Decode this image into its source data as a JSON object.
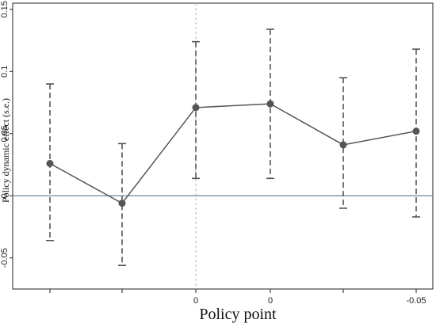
{
  "chart_data": {
    "type": "line",
    "title": "",
    "xlabel": "Policy point",
    "ylabel": "Policy dynamic effect (s.e.)",
    "ylim": [
      -0.075,
      0.155
    ],
    "y_ticks": [
      {
        "value": 0.15,
        "label": "0.15"
      },
      {
        "value": 0.1,
        "label": "0.1"
      },
      {
        "value": 0.05,
        "label": "0.05"
      },
      {
        "value": 0,
        "label": "0"
      },
      {
        "value": -0.05,
        "label": "-0.05"
      }
    ],
    "categories": [
      "",
      "",
      "0",
      "0",
      "",
      "-0.05"
    ],
    "series": [
      {
        "values": [
          0.026,
          -0.006,
          0.071,
          0.074,
          0.041,
          0.052
        ],
        "lower": [
          -0.036,
          -0.056,
          0.014,
          0.014,
          -0.01,
          -0.017
        ],
        "upper": [
          0.09,
          0.042,
          0.124,
          0.134,
          0.095,
          0.118
        ]
      }
    ],
    "reference_lines": {
      "horizontal_y": 0,
      "vertical_at_category_index": 2
    },
    "grid": false,
    "legend": "none",
    "colors": {
      "line": "#555555",
      "marker": "#555555",
      "error_bar": "#555555",
      "zero_line": "#5f8a96",
      "vline": "#a9b8c0",
      "axis": "#222222"
    }
  }
}
